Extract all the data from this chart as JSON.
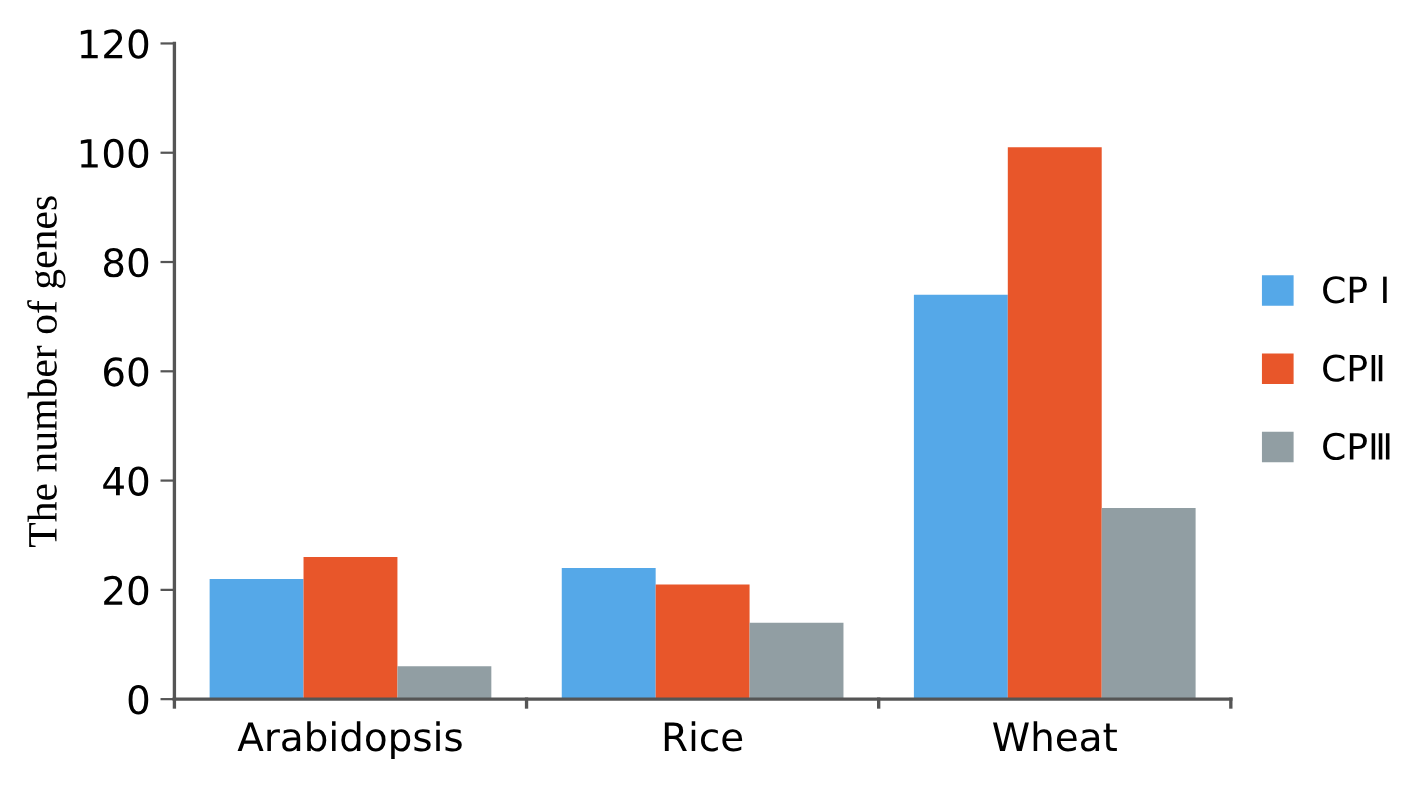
{
  "chart_data": {
    "type": "bar",
    "ylabel": "The number of genes",
    "categories": [
      "Arabidopsis",
      "Rice",
      "Wheat"
    ],
    "series": [
      {
        "name": "CP Ⅰ",
        "color": "#55a8e8",
        "values": [
          22,
          24,
          74
        ]
      },
      {
        "name": "CPⅡ",
        "color": "#e8562a",
        "values": [
          26,
          21,
          101
        ]
      },
      {
        "name": "CPⅢ",
        "color": "#919ea3",
        "values": [
          6,
          14,
          35
        ]
      }
    ],
    "ylim": [
      0,
      120
    ],
    "yticks": [
      0,
      20,
      40,
      60,
      80,
      100,
      120
    ],
    "grid": false,
    "legend": "right"
  }
}
